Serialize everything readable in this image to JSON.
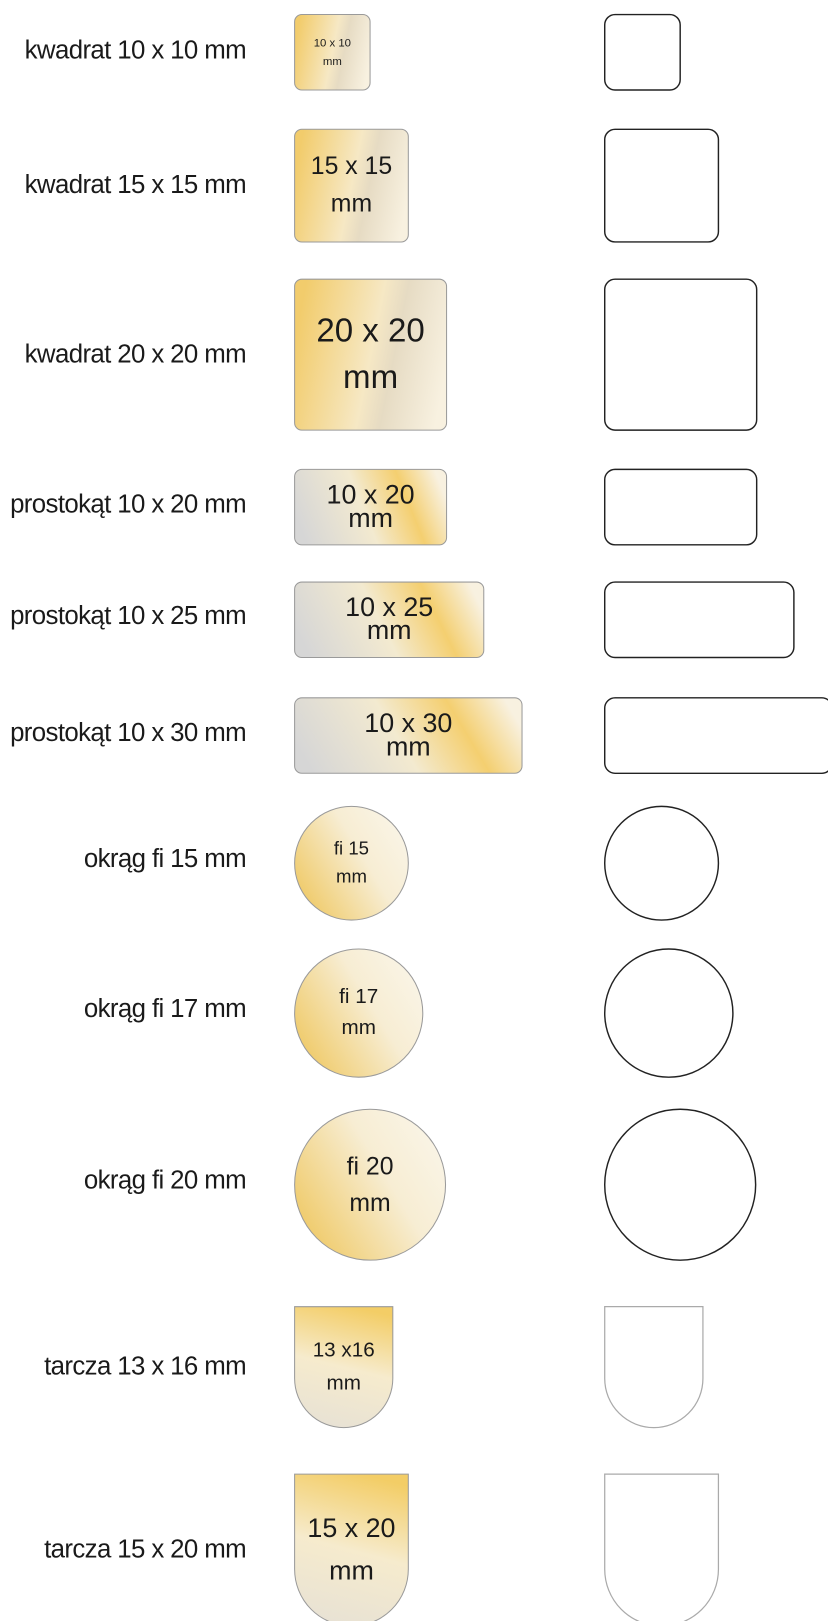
{
  "items": [
    {
      "label": "kwadrat 10 x 10 mm",
      "plate": [
        "10 x 10",
        "mm"
      ]
    },
    {
      "label": "kwadrat 15 x 15 mm",
      "plate": [
        "15 x 15",
        "mm"
      ]
    },
    {
      "label": "kwadrat 20 x 20 mm",
      "plate": [
        "20 x 20",
        "mm"
      ]
    },
    {
      "label": "prostokąt 10 x 20 mm",
      "plate": [
        "10 x 20",
        "mm"
      ]
    },
    {
      "label": "prostokąt 10 x 25 mm",
      "plate": [
        "10 x 25",
        "mm"
      ]
    },
    {
      "label": "prostokąt 10 x 30 mm",
      "plate": [
        "10 x 30",
        "mm"
      ]
    },
    {
      "label": "okrąg fi 15 mm",
      "plate": [
        "fi 15",
        "mm"
      ]
    },
    {
      "label": "okrąg fi 17 mm",
      "plate": [
        "fi 17",
        "mm"
      ]
    },
    {
      "label": "okrąg fi 20 mm",
      "plate": [
        "fi 20",
        "mm"
      ]
    },
    {
      "label": "tarcza 13 x 16 mm",
      "plate": [
        "13 x16",
        "mm"
      ]
    },
    {
      "label": "tarcza 15 x 20 mm",
      "plate": [
        "15 x 20",
        "mm"
      ]
    }
  ]
}
